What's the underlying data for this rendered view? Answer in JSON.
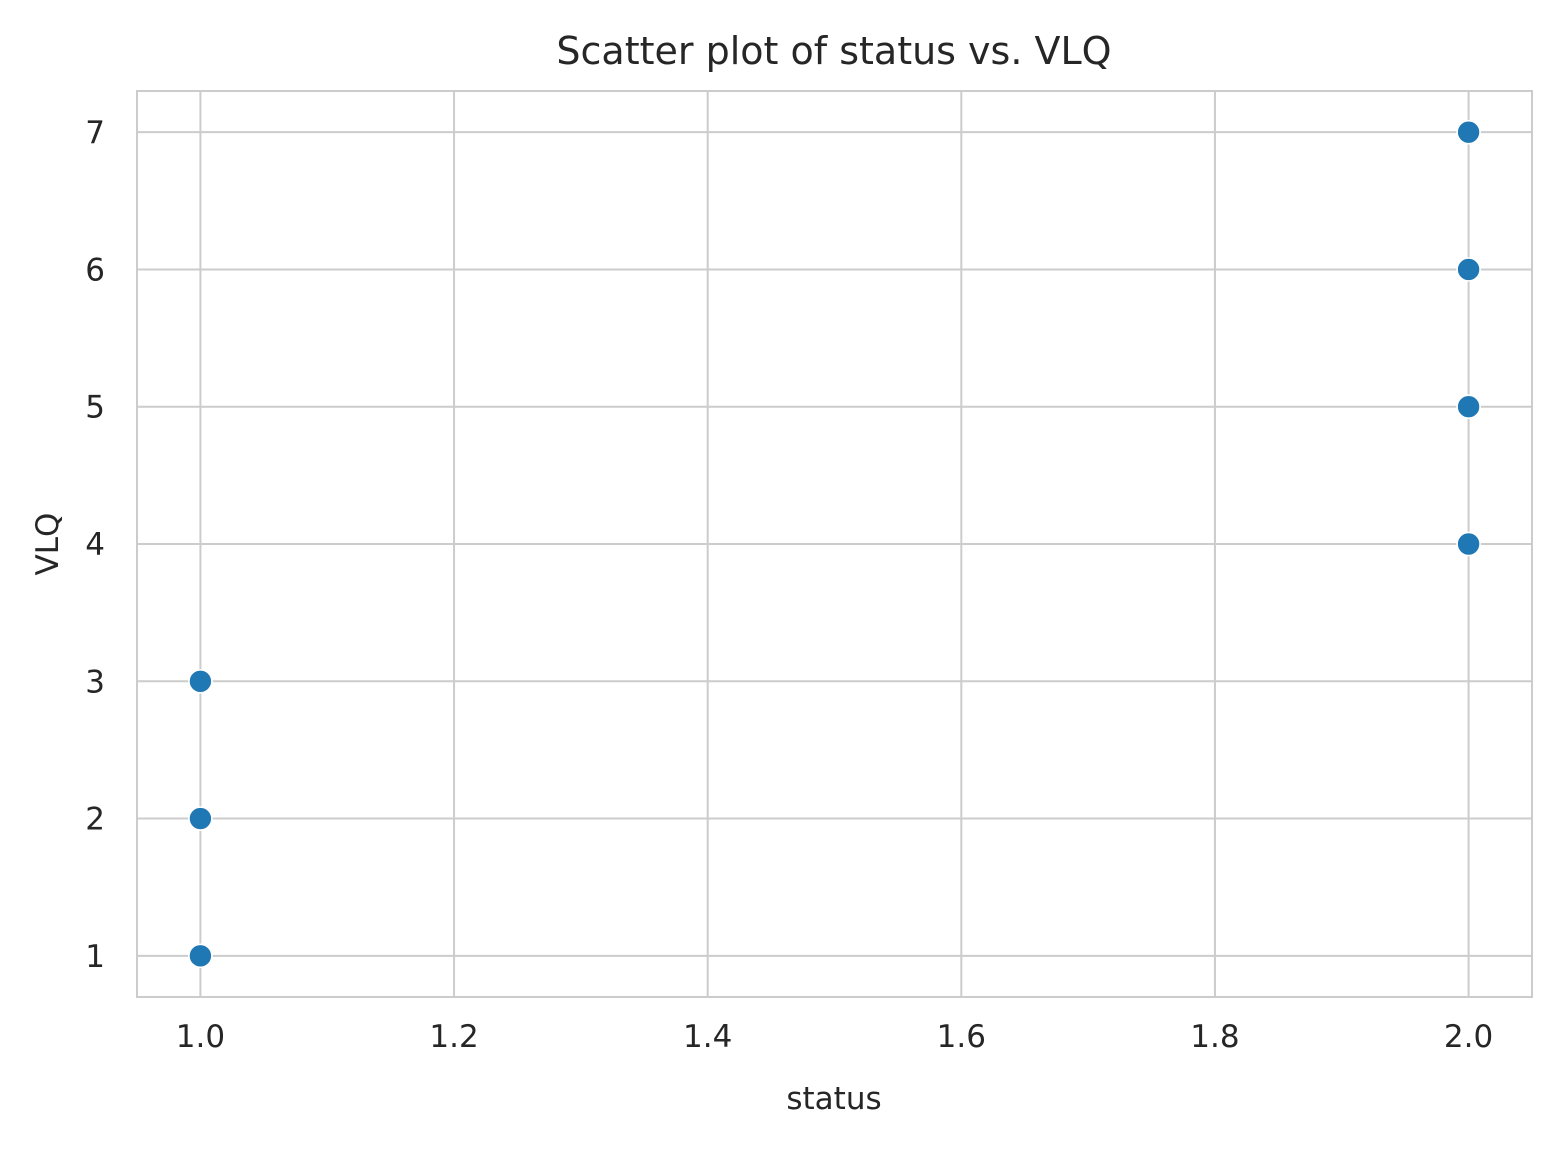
{
  "chart_data": {
    "type": "scatter",
    "title": "Scatter plot of status vs. VLQ",
    "xlabel": "status",
    "ylabel": "VLQ",
    "xlim": [
      0.95,
      2.05
    ],
    "ylim": [
      0.7,
      7.3
    ],
    "xticks": [
      1.0,
      1.2,
      1.4,
      1.6,
      1.8,
      2.0
    ],
    "xtick_labels": [
      "1.0",
      "1.2",
      "1.4",
      "1.6",
      "1.8",
      "2.0"
    ],
    "yticks": [
      1,
      2,
      3,
      4,
      5,
      6,
      7
    ],
    "ytick_labels": [
      "1",
      "2",
      "3",
      "4",
      "5",
      "6",
      "7"
    ],
    "grid": true,
    "marker_color": "#1f77b4",
    "points": [
      {
        "x": 1.0,
        "y": 1
      },
      {
        "x": 1.0,
        "y": 2
      },
      {
        "x": 1.0,
        "y": 3
      },
      {
        "x": 2.0,
        "y": 4
      },
      {
        "x": 2.0,
        "y": 5
      },
      {
        "x": 2.0,
        "y": 6
      },
      {
        "x": 2.0,
        "y": 7
      }
    ]
  }
}
